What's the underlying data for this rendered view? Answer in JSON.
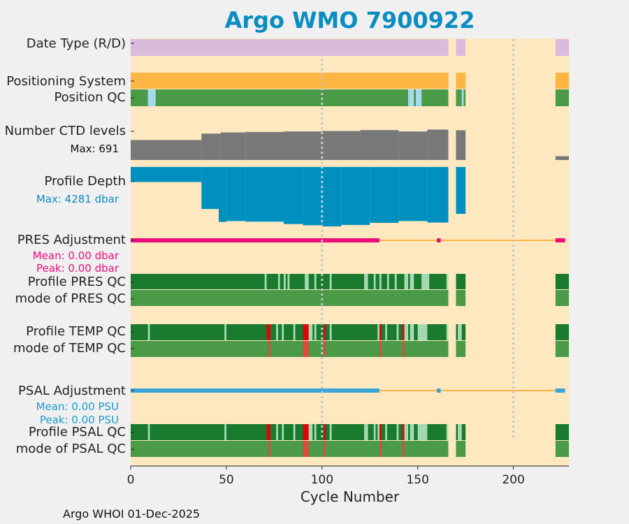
{
  "title": "Argo WMO 7900922",
  "xlabel": "Cycle Number",
  "footer": "Argo WHOI 01-Dec-2025",
  "labels": {
    "date_type": "Date Type (R/D)",
    "positioning_system": "Positioning System",
    "position_qc": "Position QC",
    "ctd_levels": "Number CTD levels",
    "profile_depth": "Profile Depth",
    "pres_adjustment": "PRES Adjustment",
    "profile_pres_qc": "Profile PRES QC",
    "mode_pres_qc": "mode of PRES QC",
    "profile_temp_qc": "Profile TEMP QC",
    "mode_temp_qc": "mode of TEMP QC",
    "psal_adjustment": "PSAL Adjustment",
    "profile_psal_qc": "Profile PSAL QC",
    "mode_psal_qc": "mode of PSAL QC"
  },
  "annotations": {
    "ctd_max": "Max: 691",
    "depth_max": "Max: 4281 dbar",
    "pres_mean": "Mean: 0.00 dbar",
    "pres_peak": "Peak: 0.00 dbar",
    "psal_mean": "Mean: 0.00 PSU",
    "psal_peak": "Peak: 0.00 PSU"
  },
  "colors": {
    "background": "#fde8c0",
    "date_type": "#dbbbdb",
    "positioning": "#fdb544",
    "qc_good": "#4a9a48",
    "qc_dark": "#1a7a2e",
    "qc_light": "#a9ddb5",
    "qc_blue": "#a8dcf0",
    "qc_red": "#e8453c",
    "qc_red_bright": "#e8000b",
    "ctd": "#787878",
    "depth": "#0090c0",
    "pres_adj": "#ec0c7c",
    "psal_adj": "#3aa6d8",
    "adj_line": "#fdb544",
    "title": "#0b8cc2"
  },
  "chart_data": {
    "type": "table",
    "xlim": [
      0,
      229
    ],
    "x_ticks": [
      0,
      50,
      100,
      150,
      200
    ],
    "vertical_gridlines": [
      100,
      200
    ],
    "cycles_present": [
      [
        1,
        166
      ],
      [
        171,
        175
      ],
      [
        223,
        229
      ]
    ],
    "ctd_levels_max": 691,
    "ctd_levels": [
      [
        1,
        37,
        420
      ],
      [
        38,
        47,
        555
      ],
      [
        48,
        60,
        580
      ],
      [
        61,
        80,
        590
      ],
      [
        81,
        100,
        600
      ],
      [
        101,
        120,
        610
      ],
      [
        121,
        140,
        630
      ],
      [
        141,
        155,
        600
      ],
      [
        156,
        166,
        640
      ],
      [
        171,
        175,
        625
      ],
      [
        223,
        229,
        80
      ]
    ],
    "profile_depth_max_dbar": 4281,
    "profile_depth": [
      [
        1,
        37,
        1000
      ],
      [
        38,
        46,
        2800
      ],
      [
        47,
        50,
        3660
      ],
      [
        51,
        60,
        3600
      ],
      [
        61,
        80,
        3640
      ],
      [
        81,
        90,
        3800
      ],
      [
        91,
        100,
        3880
      ],
      [
        101,
        110,
        3960
      ],
      [
        111,
        125,
        3860
      ],
      [
        126,
        140,
        3720
      ],
      [
        141,
        155,
        3600
      ],
      [
        156,
        166,
        3700
      ],
      [
        171,
        175,
        3120
      ]
    ],
    "pres_adjustment": {
      "mean_dbar": 0.0,
      "peak_dbar": 0.0,
      "thick_ranges": [
        [
          1,
          130
        ],
        [
          161,
          162
        ],
        [
          223,
          227
        ]
      ],
      "thin_ranges": [
        [
          130,
          223
        ]
      ]
    },
    "psal_adjustment": {
      "mean_psu": 0.0,
      "peak_psu": 0.0,
      "thick_ranges": [
        [
          1,
          130
        ],
        [
          161,
          162
        ],
        [
          223,
          227
        ]
      ],
      "thin_ranges": [
        [
          130,
          223
        ]
      ]
    },
    "rows": {
      "position_qc_light": [
        10,
        11,
        12,
        13,
        146,
        147,
        148,
        150,
        151,
        152,
        174
      ],
      "profile_pres_qc_light": [
        71,
        78,
        81,
        83,
        92,
        93,
        97,
        105,
        123,
        124,
        128,
        131,
        135,
        139,
        144,
        145,
        147,
        148,
        153,
        154,
        155,
        156,
        166
      ],
      "profile_temp_qc_light": [
        10,
        50,
        77,
        80,
        86,
        94,
        95,
        97,
        105,
        130,
        134,
        140,
        144,
        145,
        147,
        148,
        151,
        152,
        153,
        154,
        155,
        166,
        172,
        173
      ],
      "profile_temp_qc_red": [
        72,
        73,
        91,
        92,
        93,
        102,
        131,
        143
      ],
      "mode_temp_qc_red": [
        73,
        91,
        92,
        93,
        102,
        131,
        143
      ],
      "profile_psal_qc_light": [
        10,
        50,
        77,
        80,
        86,
        94,
        95,
        97,
        105,
        123,
        124,
        128,
        130,
        134,
        140,
        144,
        145,
        147,
        148,
        151,
        152,
        153,
        154,
        155,
        166,
        172,
        173
      ],
      "profile_psal_qc_red": [
        72,
        73,
        91,
        92,
        93,
        102,
        131,
        143
      ],
      "mode_psal_qc_red": [
        73,
        91,
        92,
        93,
        102,
        131,
        143
      ]
    }
  }
}
